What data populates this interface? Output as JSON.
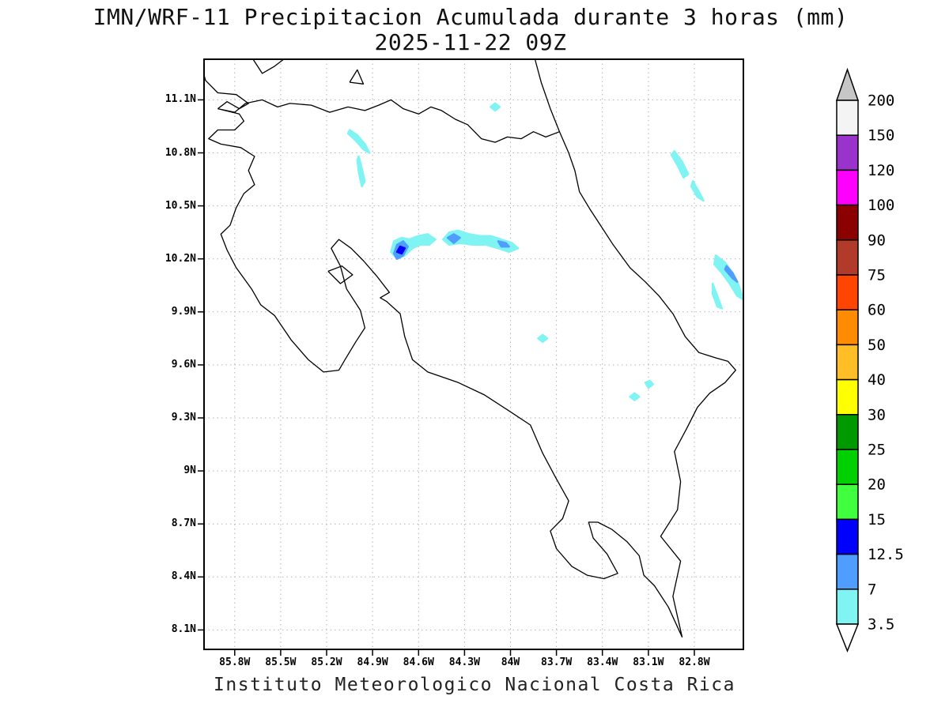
{
  "title": {
    "line1": "IMN/WRF-11 Precipitacion Acumulada durante 3 horas (mm)",
    "line2": "2025-11-22 09Z"
  },
  "caption": "Instituto Meteorologico Nacional Costa Rica",
  "chart_data": {
    "type": "filled-contour-map",
    "model": "IMN/WRF-11",
    "variable": "Precipitacion Acumulada durante 3 horas",
    "units": "mm",
    "valid_time": "2025-11-22 09Z",
    "title": "IMN/WRF-11 Precipitacion Acumulada durante 3 horas (mm)",
    "subtitle": "2025-11-22 09Z",
    "grid": true,
    "grid_color": "#b4b4b4",
    "lon_range": [
      86.0,
      82.48
    ],
    "lat_range": [
      11.33,
      7.99
    ],
    "x_axis": {
      "label_format": "degrees west",
      "ticks": [
        "85.8W",
        "85.5W",
        "85.2W",
        "84.9W",
        "84.6W",
        "84.3W",
        "84W",
        "83.7W",
        "83.4W",
        "83.1W",
        "82.8W"
      ],
      "values": [
        85.8,
        85.5,
        85.2,
        84.9,
        84.6,
        84.3,
        84.0,
        83.7,
        83.4,
        83.1,
        82.8
      ]
    },
    "y_axis": {
      "label_format": "degrees north",
      "ticks": [
        "11.1N",
        "10.8N",
        "10.5N",
        "10.2N",
        "9.9N",
        "9.6N",
        "9.3N",
        "9N",
        "8.7N",
        "8.4N",
        "8.1N"
      ],
      "values": [
        11.1,
        10.8,
        10.5,
        10.2,
        9.9,
        9.6,
        9.3,
        9.0,
        8.7,
        8.4,
        8.1
      ]
    },
    "colorbar": {
      "position": "right",
      "levels": [
        200,
        150,
        120,
        100,
        90,
        75,
        60,
        50,
        40,
        30,
        25,
        20,
        15,
        12.5,
        7,
        3.5
      ],
      "segment_colors": [
        "#f4f4f4",
        "#9933cc",
        "#ff00ff",
        "#8b0000",
        "#b23a2a",
        "#ff4500",
        "#ff8c00",
        "#ffbe26",
        "#ffff00",
        "#009a00",
        "#00cf00",
        "#3fff3f",
        "#0000ff",
        "#4f9dff",
        "#80f3f3"
      ],
      "above_color": "#c6c6c6",
      "below_color": "#ffffff"
    },
    "basemap": {
      "outline_color": "#000000",
      "coastlines": [
        [
          [
            85.91,
            11.05
          ],
          [
            85.8,
            11.03
          ],
          [
            85.73,
            11.08
          ],
          [
            85.62,
            11.1
          ],
          [
            85.52,
            11.06
          ],
          [
            85.44,
            11.08
          ],
          [
            85.3,
            11.07
          ],
          [
            85.18,
            11.03
          ],
          [
            85.06,
            11.06
          ],
          [
            84.95,
            11.04
          ],
          [
            84.86,
            11.07
          ],
          [
            84.78,
            11.1
          ],
          [
            84.7,
            11.05
          ],
          [
            84.6,
            11.02
          ],
          [
            84.52,
            11.06
          ],
          [
            84.45,
            11.04
          ],
          [
            84.36,
            10.99
          ],
          [
            84.28,
            10.96
          ],
          [
            84.19,
            10.88
          ],
          [
            84.1,
            10.86
          ],
          [
            84.02,
            10.89
          ],
          [
            83.93,
            10.88
          ],
          [
            83.85,
            10.92
          ],
          [
            83.77,
            10.89
          ],
          [
            83.68,
            10.92
          ],
          [
            83.62,
            10.8
          ],
          [
            83.58,
            10.7
          ],
          [
            83.55,
            10.58
          ],
          [
            83.48,
            10.48
          ],
          [
            83.42,
            10.4
          ],
          [
            83.33,
            10.28
          ],
          [
            83.22,
            10.15
          ],
          [
            83.12,
            10.07
          ],
          [
            83.03,
            9.99
          ],
          [
            82.94,
            9.89
          ],
          [
            82.86,
            9.76
          ],
          [
            82.77,
            9.67
          ],
          [
            82.66,
            9.64
          ],
          [
            82.58,
            9.62
          ],
          [
            82.53,
            9.57
          ],
          [
            82.6,
            9.5
          ],
          [
            82.7,
            9.44
          ],
          [
            82.78,
            9.36
          ],
          [
            82.85,
            9.24
          ],
          [
            82.93,
            9.11
          ],
          [
            82.89,
            8.94
          ],
          [
            82.91,
            8.78
          ],
          [
            83.02,
            8.63
          ],
          [
            82.89,
            8.49
          ],
          [
            82.94,
            8.29
          ],
          [
            82.88,
            8.06
          ],
          [
            82.97,
            8.23
          ],
          [
            83.06,
            8.35
          ],
          [
            83.13,
            8.41
          ],
          [
            83.16,
            8.52
          ],
          [
            83.24,
            8.6
          ],
          [
            83.34,
            8.67
          ],
          [
            83.43,
            8.71
          ],
          [
            83.49,
            8.71
          ],
          [
            83.46,
            8.62
          ],
          [
            83.37,
            8.53
          ],
          [
            83.3,
            8.42
          ],
          [
            83.39,
            8.39
          ],
          [
            83.5,
            8.41
          ],
          [
            83.6,
            8.46
          ],
          [
            83.7,
            8.56
          ],
          [
            83.74,
            8.66
          ],
          [
            83.66,
            8.73
          ],
          [
            83.62,
            8.83
          ],
          [
            83.71,
            8.97
          ],
          [
            83.79,
            9.1
          ],
          [
            83.87,
            9.26
          ],
          [
            84.01,
            9.34
          ],
          [
            84.17,
            9.43
          ],
          [
            84.34,
            9.5
          ],
          [
            84.54,
            9.56
          ],
          [
            84.64,
            9.63
          ],
          [
            84.69,
            9.76
          ],
          [
            84.72,
            9.89
          ],
          [
            84.81,
            9.96
          ],
          [
            84.85,
            9.98
          ],
          [
            84.79,
            10.01
          ],
          [
            84.87,
            10.1
          ],
          [
            84.96,
            10.19
          ],
          [
            85.04,
            10.26
          ],
          [
            85.12,
            10.31
          ],
          [
            85.17,
            10.26
          ],
          [
            85.11,
            10.16
          ],
          [
            85.07,
            10.03
          ],
          [
            84.98,
            9.91
          ],
          [
            84.95,
            9.81
          ],
          [
            85.01,
            9.73
          ],
          [
            85.08,
            9.63
          ],
          [
            85.12,
            9.57
          ],
          [
            85.22,
            9.56
          ],
          [
            85.32,
            9.63
          ],
          [
            85.43,
            9.74
          ],
          [
            85.54,
            9.88
          ],
          [
            85.63,
            9.94
          ],
          [
            85.69,
            10.03
          ],
          [
            85.79,
            10.15
          ],
          [
            85.85,
            10.25
          ],
          [
            85.89,
            10.34
          ],
          [
            85.83,
            10.39
          ],
          [
            85.79,
            10.49
          ],
          [
            85.74,
            10.57
          ],
          [
            85.67,
            10.62
          ],
          [
            85.71,
            10.7
          ],
          [
            85.67,
            10.78
          ],
          [
            85.76,
            10.83
          ],
          [
            85.89,
            10.85
          ],
          [
            85.97,
            10.88
          ],
          [
            85.91,
            10.93
          ],
          [
            85.8,
            10.93
          ],
          [
            85.74,
            10.98
          ],
          [
            85.77,
            11.02
          ],
          [
            85.91,
            11.05
          ]
        ],
        [
          [
            85.91,
            11.05
          ],
          [
            85.85,
            11.09
          ],
          [
            85.77,
            11.05
          ],
          [
            85.71,
            11.08
          ],
          [
            85.79,
            11.13
          ],
          [
            85.91,
            11.14
          ],
          [
            85.99,
            11.21
          ],
          [
            86.0,
            11.24
          ]
        ],
        [
          [
            85.68,
            11.33
          ],
          [
            85.62,
            11.25
          ],
          [
            85.54,
            11.29
          ],
          [
            85.48,
            11.33
          ]
        ],
        [
          [
            85.05,
            11.2
          ],
          [
            85.0,
            11.27
          ],
          [
            84.96,
            11.19
          ],
          [
            85.05,
            11.2
          ]
        ],
        [
          [
            83.68,
            10.92
          ],
          [
            83.74,
            11.05
          ],
          [
            83.8,
            11.2
          ],
          [
            83.84,
            11.33
          ]
        ],
        [
          [
            85.19,
            10.13
          ],
          [
            85.1,
            10.16
          ],
          [
            85.03,
            10.11
          ],
          [
            85.11,
            10.06
          ],
          [
            85.19,
            10.13
          ]
        ]
      ]
    },
    "precip_patches": [
      {
        "level": 3.5,
        "points": [
          [
            85.05,
            10.93
          ],
          [
            85.0,
            10.9
          ],
          [
            84.95,
            10.85
          ],
          [
            84.92,
            10.8
          ],
          [
            84.96,
            10.82
          ],
          [
            85.01,
            10.87
          ],
          [
            85.06,
            10.91
          ]
        ]
      },
      {
        "level": 3.5,
        "points": [
          [
            84.99,
            10.78
          ],
          [
            84.97,
            10.71
          ],
          [
            84.95,
            10.64
          ],
          [
            84.97,
            10.61
          ],
          [
            84.99,
            10.69
          ],
          [
            85.0,
            10.76
          ]
        ]
      },
      {
        "level": 3.5,
        "points": [
          [
            84.78,
            10.24
          ],
          [
            84.76,
            10.3
          ],
          [
            84.71,
            10.32
          ],
          [
            84.66,
            10.31
          ],
          [
            84.6,
            10.33
          ],
          [
            84.54,
            10.34
          ],
          [
            84.49,
            10.31
          ],
          [
            84.53,
            10.28
          ],
          [
            84.59,
            10.28
          ],
          [
            84.64,
            10.26
          ],
          [
            84.69,
            10.22
          ],
          [
            84.74,
            10.2
          ]
        ]
      },
      {
        "level": 7,
        "points": [
          [
            84.76,
            10.23
          ],
          [
            84.74,
            10.28
          ],
          [
            84.7,
            10.3
          ],
          [
            84.67,
            10.27
          ],
          [
            84.7,
            10.22
          ],
          [
            84.74,
            10.2
          ]
        ]
      },
      {
        "level": 12.5,
        "points": [
          [
            84.74,
            10.24
          ],
          [
            84.72,
            10.27
          ],
          [
            84.69,
            10.26
          ],
          [
            84.71,
            10.23
          ]
        ]
      },
      {
        "level": 3.5,
        "points": [
          [
            84.44,
            10.31
          ],
          [
            84.4,
            10.35
          ],
          [
            84.34,
            10.36
          ],
          [
            84.27,
            10.34
          ],
          [
            84.2,
            10.33
          ],
          [
            84.13,
            10.33
          ],
          [
            84.06,
            10.31
          ],
          [
            83.99,
            10.29
          ],
          [
            83.95,
            10.26
          ],
          [
            84.01,
            10.24
          ],
          [
            84.08,
            10.26
          ],
          [
            84.16,
            10.28
          ],
          [
            84.25,
            10.28
          ],
          [
            84.33,
            10.29
          ],
          [
            84.4,
            10.28
          ]
        ]
      },
      {
        "level": 7,
        "points": [
          [
            84.41,
            10.32
          ],
          [
            84.37,
            10.34
          ],
          [
            84.33,
            10.32
          ],
          [
            84.37,
            10.29
          ]
        ]
      },
      {
        "level": 7,
        "points": [
          [
            84.08,
            10.3
          ],
          [
            84.03,
            10.29
          ],
          [
            84.01,
            10.27
          ],
          [
            84.06,
            10.27
          ]
        ]
      },
      {
        "level": 3.5,
        "points": [
          [
            84.13,
            11.06
          ],
          [
            84.1,
            11.08
          ],
          [
            84.07,
            11.06
          ],
          [
            84.1,
            11.04
          ]
        ]
      },
      {
        "level": 3.5,
        "points": [
          [
            82.93,
            10.81
          ],
          [
            82.88,
            10.75
          ],
          [
            82.84,
            10.68
          ],
          [
            82.87,
            10.66
          ],
          [
            82.91,
            10.73
          ],
          [
            82.95,
            10.79
          ]
        ]
      },
      {
        "level": 3.5,
        "points": [
          [
            82.81,
            10.64
          ],
          [
            82.77,
            10.58
          ],
          [
            82.74,
            10.53
          ],
          [
            82.78,
            10.55
          ],
          [
            82.82,
            10.61
          ]
        ]
      },
      {
        "level": 3.5,
        "points": [
          [
            82.66,
            10.22
          ],
          [
            82.6,
            10.18
          ],
          [
            82.55,
            10.12
          ],
          [
            82.51,
            10.05
          ],
          [
            82.48,
            9.97
          ],
          [
            82.52,
            9.99
          ],
          [
            82.57,
            10.06
          ],
          [
            82.62,
            10.12
          ],
          [
            82.67,
            10.17
          ]
        ]
      },
      {
        "level": 7,
        "points": [
          [
            82.59,
            10.16
          ],
          [
            82.55,
            10.12
          ],
          [
            82.52,
            10.07
          ],
          [
            82.55,
            10.09
          ],
          [
            82.6,
            10.14
          ]
        ]
      },
      {
        "level": 3.5,
        "points": [
          [
            82.68,
            10.06
          ],
          [
            82.65,
            9.99
          ],
          [
            82.62,
            9.92
          ],
          [
            82.65,
            9.93
          ],
          [
            82.68,
            10.0
          ]
        ]
      },
      {
        "level": 3.5,
        "points": [
          [
            83.82,
            9.75
          ],
          [
            83.79,
            9.77
          ],
          [
            83.76,
            9.75
          ],
          [
            83.79,
            9.73
          ]
        ]
      },
      {
        "level": 3.5,
        "points": [
          [
            83.22,
            9.42
          ],
          [
            83.19,
            9.44
          ],
          [
            83.16,
            9.42
          ],
          [
            83.19,
            9.4
          ]
        ]
      },
      {
        "level": 3.5,
        "points": [
          [
            83.12,
            9.5
          ],
          [
            83.09,
            9.51
          ],
          [
            83.07,
            9.49
          ],
          [
            83.1,
            9.47
          ]
        ]
      }
    ]
  }
}
